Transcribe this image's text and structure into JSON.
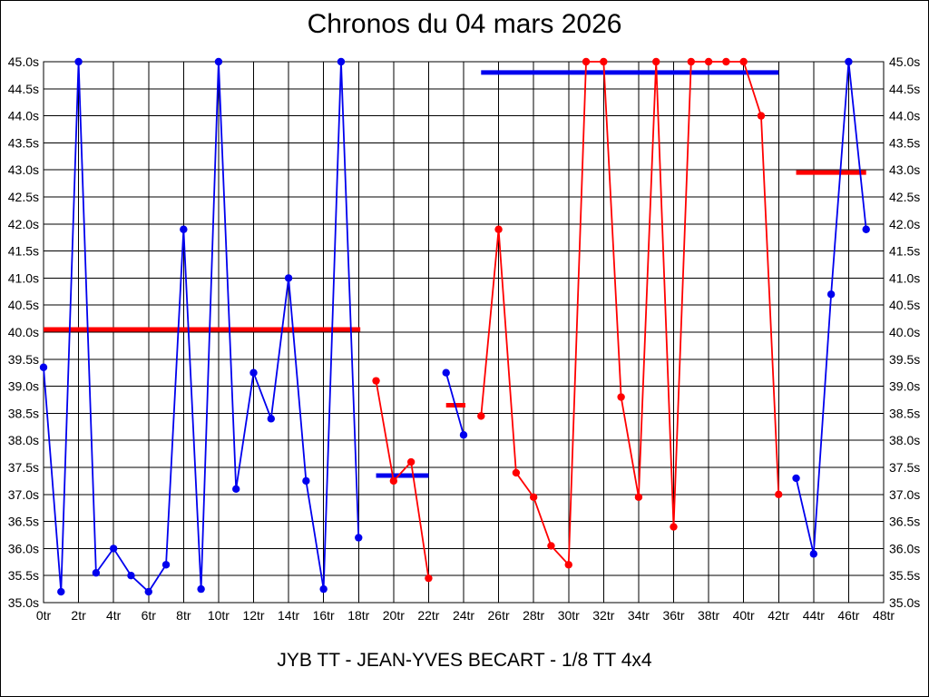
{
  "page": {
    "title": "Chronos du 04 mars 2026",
    "footer": "JYB TT - JEAN-YVES BECART - 1/8 TT 4x4"
  },
  "chart_data": {
    "type": "line",
    "title": "Chronos du 04 mars 2026",
    "footer_label": "JYB TT - JEAN-YVES BECART - 1/8 TT 4x4",
    "xlabel": "",
    "ylabel": "",
    "x_axis": {
      "min": 0,
      "max": 48,
      "tick_step": 2,
      "tick_suffix": "tr"
    },
    "y_axis": {
      "min": 35.0,
      "max": 45.0,
      "tick_step": 0.5,
      "tick_suffix": "s",
      "tick_decimals": 1,
      "labels_both_sides": true
    },
    "grid": true,
    "legend": "none",
    "colors": {
      "blue": "#0000ee",
      "red": "#ff0000",
      "grid": "#000000",
      "background": "#ffffff"
    },
    "series": [
      {
        "name": "heat-1-blue",
        "color": "blue",
        "x": [
          0,
          1,
          2,
          3,
          4,
          5,
          6,
          7,
          8,
          9,
          10,
          11,
          12,
          13,
          14,
          15,
          16,
          17,
          18
        ],
        "values": [
          39.35,
          35.2,
          45.0,
          35.55,
          36.0,
          35.5,
          35.2,
          35.7,
          41.9,
          35.25,
          45.0,
          37.1,
          39.25,
          38.4,
          41.0,
          37.25,
          35.25,
          45.0,
          36.2
        ]
      },
      {
        "name": "heat-2-red",
        "color": "red",
        "x": [
          19,
          20,
          21,
          22
        ],
        "values": [
          39.1,
          37.25,
          37.6,
          35.45
        ]
      },
      {
        "name": "heat-3-blue",
        "color": "blue",
        "x": [
          23,
          24
        ],
        "values": [
          39.25,
          38.1
        ]
      },
      {
        "name": "heat-4-red",
        "color": "red",
        "x": [
          25,
          26,
          27,
          28,
          29,
          30,
          31,
          32,
          33,
          34,
          35,
          36,
          37,
          38,
          39,
          40,
          41,
          42
        ],
        "values": [
          38.45,
          41.9,
          37.4,
          36.95,
          36.05,
          35.7,
          45.0,
          45.0,
          38.8,
          36.95,
          45.0,
          36.4,
          45.0,
          45.0,
          45.0,
          45.0,
          44.0,
          37.0
        ]
      },
      {
        "name": "heat-5-blue",
        "color": "blue",
        "x": [
          43,
          44,
          45,
          46,
          47
        ],
        "values": [
          37.3,
          35.9,
          40.7,
          45.0,
          41.9
        ]
      }
    ],
    "average_lines": [
      {
        "name": "avg-heat-1",
        "color": "red",
        "value": 40.05,
        "x_from": 0,
        "x_to": 18.1
      },
      {
        "name": "avg-heat-2",
        "color": "blue",
        "value": 37.35,
        "x_from": 19,
        "x_to": 22
      },
      {
        "name": "avg-heat-3",
        "color": "red",
        "value": 38.65,
        "x_from": 23,
        "x_to": 24.1
      },
      {
        "name": "avg-heat-4",
        "color": "blue",
        "value": 44.8,
        "x_from": 25,
        "x_to": 42
      },
      {
        "name": "avg-heat-5",
        "color": "red",
        "value": 42.95,
        "x_from": 43,
        "x_to": 47
      }
    ]
  }
}
